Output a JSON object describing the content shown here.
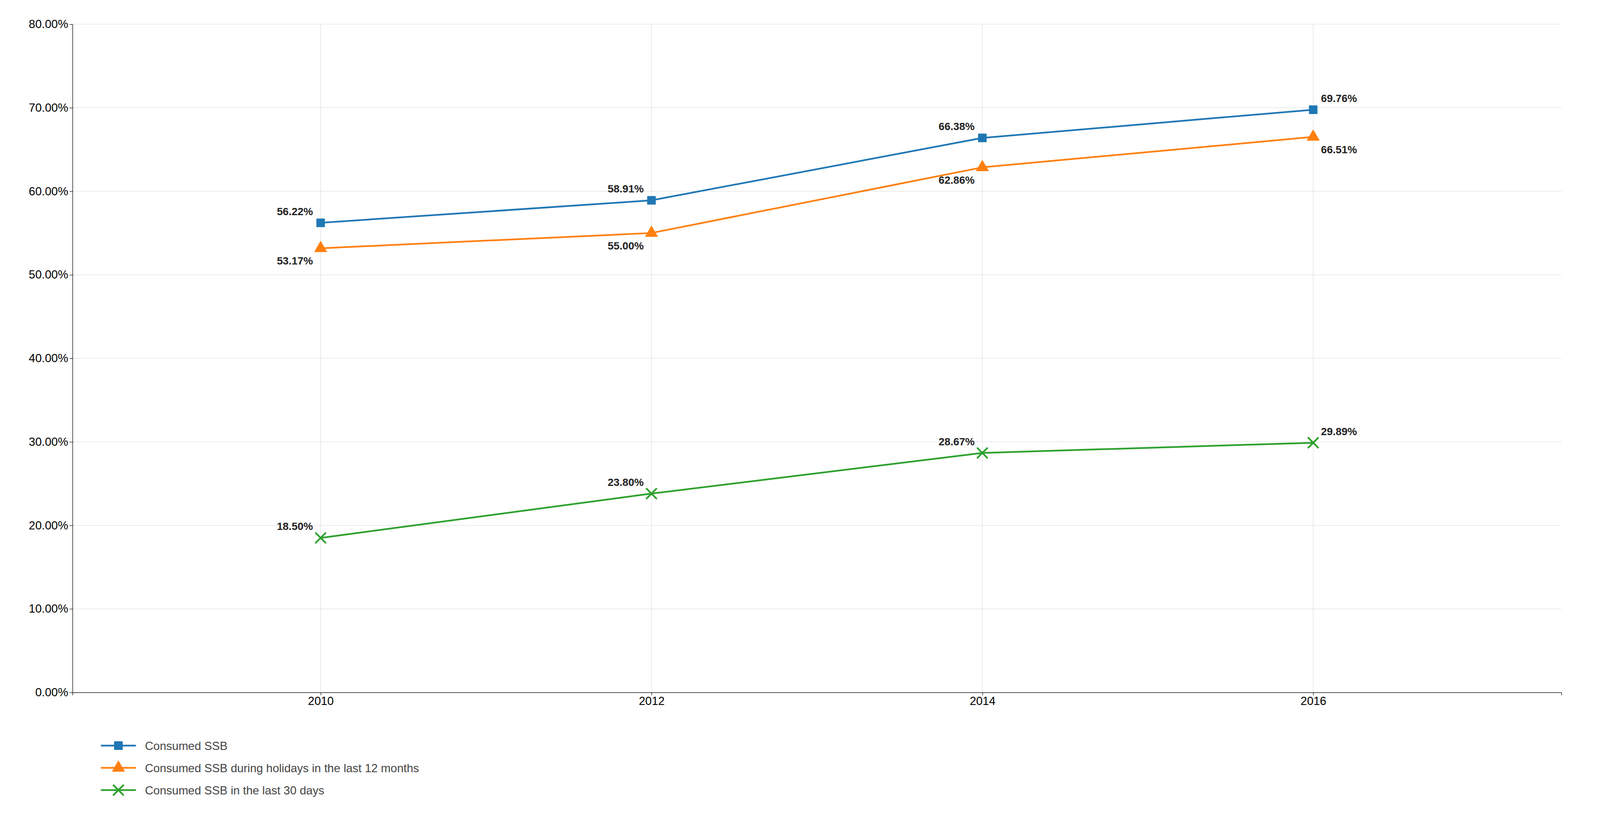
{
  "chart_data": {
    "type": "line",
    "x": [
      2010,
      2012,
      2014,
      2016
    ],
    "xlim": [
      2008.5,
      2017.5
    ],
    "xticks": [
      2010,
      2012,
      2014,
      2016
    ],
    "ylim": [
      0.0,
      0.8
    ],
    "yticks": [
      {
        "value": 0.0,
        "label": "0.00%"
      },
      {
        "value": 0.1,
        "label": "10.00%"
      },
      {
        "value": 0.2,
        "label": "20.00%"
      },
      {
        "value": 0.3,
        "label": "30.00%"
      },
      {
        "value": 0.4,
        "label": "40.00%"
      },
      {
        "value": 0.5,
        "label": "50.00%"
      },
      {
        "value": 0.6,
        "label": "60.00%"
      },
      {
        "value": 0.7,
        "label": "70.00%"
      },
      {
        "value": 0.8,
        "label": "80.00%"
      }
    ],
    "series": [
      {
        "name": "Consumed SSB",
        "marker": "square",
        "values": [
          0.5622,
          0.5891,
          0.6638,
          0.6976
        ],
        "value_labels": [
          "56.22%",
          "58.91%",
          "66.38%",
          "69.76%"
        ]
      },
      {
        "name": "Consumed SSB during holidays in the last 12 months",
        "marker": "triangle",
        "values": [
          0.5317,
          0.55,
          0.6286,
          0.6651
        ],
        "value_labels": [
          "53.17%",
          "55.00%",
          "62.86%",
          "66.51%"
        ]
      },
      {
        "name": "Consumed SSB in the last 30 days",
        "marker": "x",
        "values": [
          0.185,
          0.238,
          0.2867,
          0.2989
        ],
        "value_labels": [
          "18.50%",
          "23.80%",
          "28.67%",
          "29.89%"
        ]
      }
    ],
    "grid": true,
    "legend": "bottom",
    "data_labels": true
  }
}
